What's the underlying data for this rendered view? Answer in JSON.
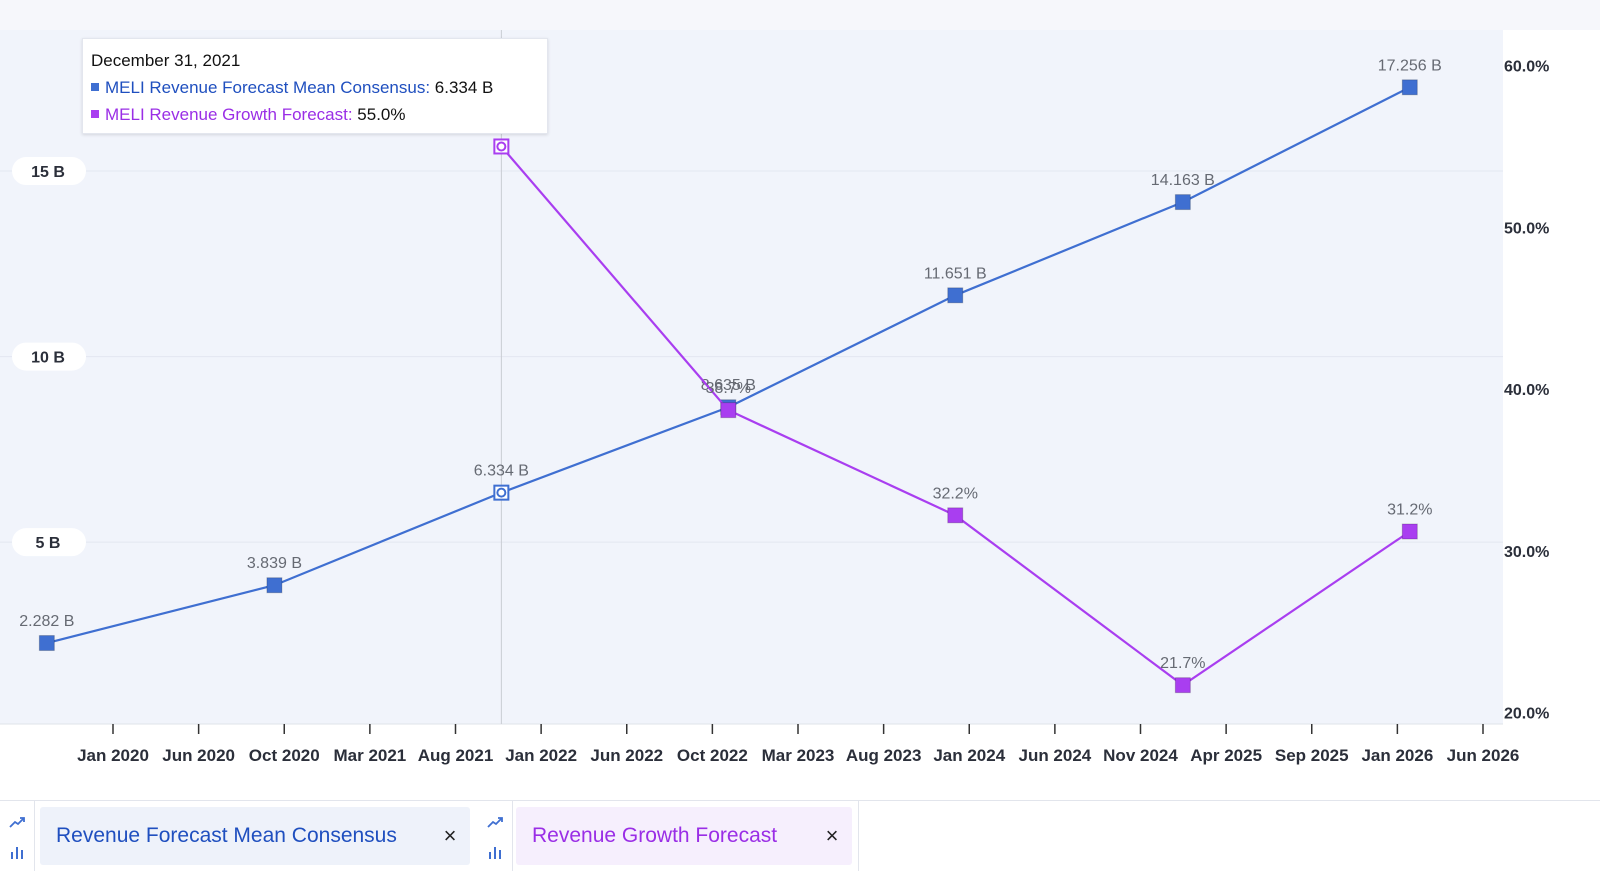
{
  "colors": {
    "revenue": "#3f6fd1",
    "growth": "#a93ef0",
    "plot_bg": "#f1f4fb",
    "revenue_chip_bg": "#eef2fa",
    "growth_chip_bg": "#f6effd",
    "revenue_text": "#1f4fbf",
    "growth_text": "#9a2ee6"
  },
  "tooltip": {
    "date": "December 31, 2021",
    "revenue_label": "MELI Revenue Forecast Mean Consensus:",
    "revenue_value": "6.334 B",
    "growth_label": "MELI Revenue Growth Forecast:",
    "growth_value": "55.0%"
  },
  "legend_chips": [
    {
      "label": "Revenue Forecast Mean Consensus",
      "close": "×",
      "icons": [
        "trend-line-icon",
        "bar-chart-icon"
      ]
    },
    {
      "label": "Revenue Growth Forecast",
      "close": "×",
      "icons": [
        "trend-line-icon",
        "bar-chart-icon"
      ]
    }
  ],
  "chart_data": {
    "type": "line",
    "x_ticks": [
      "Jan 2020",
      "Jun 2020",
      "Oct 2020",
      "Mar 2021",
      "Aug 2021",
      "Jan 2022",
      "Jun 2022",
      "Oct 2022",
      "Mar 2023",
      "Aug 2023",
      "Jan 2024",
      "Jun 2024",
      "Nov 2024",
      "Apr 2025",
      "Sep 2025",
      "Jan 2026",
      "Jun 2026"
    ],
    "x_range": [
      "2019-12-20",
      "2026-06-15"
    ],
    "y_left": {
      "ticks": [
        "5 B",
        "10 B",
        "15 B"
      ],
      "tick_values": [
        5,
        10,
        15
      ],
      "range": [
        0.1,
        18.8
      ]
    },
    "y_right": {
      "ticks": [
        "20.0%",
        "30.0%",
        "40.0%",
        "50.0%",
        "60.0%"
      ],
      "tick_values": [
        20,
        30,
        40,
        50,
        60
      ],
      "range": [
        19.3,
        62.2
      ]
    },
    "grid": "horizontal",
    "series": [
      {
        "name": "Revenue Forecast Mean Consensus",
        "axis": "left",
        "points": [
          {
            "x": "2019-12-31",
            "y": 2.282,
            "label": "2.282 B"
          },
          {
            "x": "2020-12-31",
            "y": 3.839,
            "label": "3.839 B"
          },
          {
            "x": "2021-12-31",
            "y": 6.334,
            "label": "6.334 B"
          },
          {
            "x": "2022-12-31",
            "y": 8.635,
            "label": "8.635 B"
          },
          {
            "x": "2023-12-31",
            "y": 11.651,
            "label": "11.651 B"
          },
          {
            "x": "2024-12-31",
            "y": 14.163,
            "label": "14.163 B"
          },
          {
            "x": "2025-12-31",
            "y": 17.256,
            "label": "17.256 B"
          }
        ]
      },
      {
        "name": "Revenue Growth Forecast",
        "axis": "right",
        "points": [
          {
            "x": "2021-12-31",
            "y": 55.0,
            "label": "55.0%"
          },
          {
            "x": "2022-12-31",
            "y": 38.7,
            "label": "38.7%"
          },
          {
            "x": "2023-12-31",
            "y": 32.2,
            "label": "32.2%"
          },
          {
            "x": "2024-12-31",
            "y": 21.7,
            "label": "21.7%"
          },
          {
            "x": "2025-12-31",
            "y": 31.2,
            "label": "31.2%"
          }
        ]
      }
    ],
    "highlight_x": "2021-12-31"
  }
}
